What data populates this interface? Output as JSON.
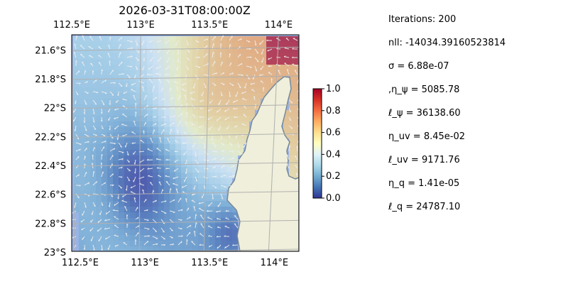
{
  "chart_data": {
    "type": "heatmap",
    "title": "2026-03-31T08:00:00Z",
    "x_ticks": [
      "112.5°E",
      "113°E",
      "113.5°E",
      "114°E"
    ],
    "x_tick_values": [
      112.5,
      113.0,
      113.5,
      114.0
    ],
    "y_ticks": [
      "21.6°S",
      "21.8°S",
      "22°S",
      "22.2°S",
      "22.4°S",
      "22.6°S",
      "22.8°S",
      "23°S"
    ],
    "y_tick_values": [
      -21.6,
      -21.8,
      -22.0,
      -22.2,
      -22.4,
      -22.6,
      -22.8,
      -23.0
    ],
    "xlim": [
      112.5,
      114.2
    ],
    "ylim": [
      -23.0,
      -21.5
    ],
    "grid": true,
    "colorbar": {
      "ticks": [
        "0.0",
        "0.2",
        "0.4",
        "0.6",
        "0.8",
        "1.0"
      ],
      "range": [
        0,
        1
      ],
      "colormap": "RdYlBu_r"
    },
    "colors": {
      "ocean": "#99b3e6",
      "land": "#efefdb",
      "coastline": "#778899",
      "vectors": "#f0f0f0",
      "grid": "#b0b0b0"
    },
    "field_description_values": {
      "north_east_high": 0.85,
      "central_low": 0.05,
      "west_mid": 0.3
    }
  },
  "stats": [
    "Iterations: 200",
    "nll: -14034.39160523814",
    "σ = 6.88e-07",
    ",η_ψ = 5085.78",
    "ℓ_ψ = 36138.60",
    "η_uv = 8.45e-02",
    "ℓ_uv = 9171.76",
    "η_q = 1.41e-05",
    "ℓ_q = 24787.10"
  ]
}
